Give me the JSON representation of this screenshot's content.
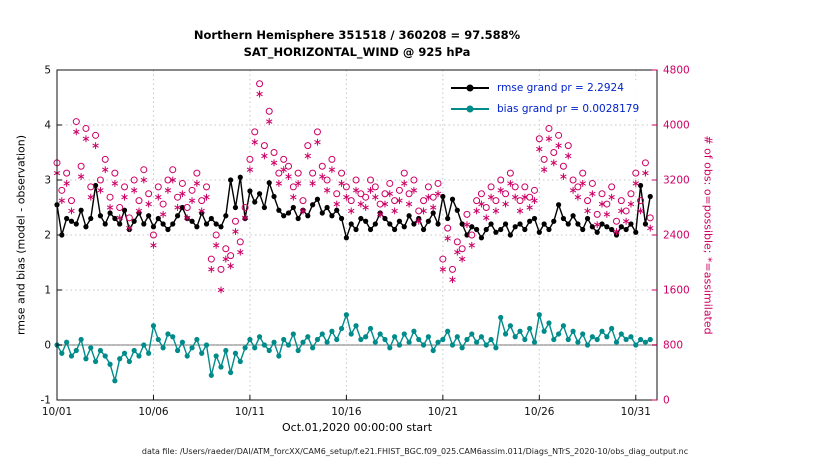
{
  "chart": {
    "title_line1": "Northern Hemisphere 351518 / 360208 = 97.588%",
    "title_line2": "SAT_HORIZONTAL_WIND @ 925 hPa",
    "xlabel": "Oct.01,2020 00:00:00 start",
    "ylabel_left": "rmse and bias (model - observation)",
    "ylabel_right": "# of obs: o=possible; *=assimilated",
    "footer": "data file: /Users/raeder/DAI/ATM_forcXX/CAM6_setup/f.e21.FHIST_BGC.f09_025.CAM6assim.011/Diags_NTrS_2020-10/obs_diag_output.nc",
    "colors": {
      "rmse": "#000000",
      "bias": "#008b8b",
      "obs": "#cc0066",
      "legend_text": "#0022cc",
      "axis": "#111111",
      "grid": "#c7c7c7",
      "zero_line": "#b8b8b8"
    },
    "legend": [
      {
        "label": "rmse grand pr = 2.2924",
        "color": "#000000"
      },
      {
        "label": "bias grand pr = 0.0028179",
        "color": "#008b8b"
      }
    ]
  },
  "chart_data": {
    "type": "line",
    "title": "Northern Hemisphere 351518 / 360208 = 97.588% | SAT_HORIZONTAL_WIND @ 925 hPa",
    "xlabel": "Oct.01,2020 00:00:00 start",
    "ylabel_left": "rmse and bias (model - observation)",
    "ylabel_right": "# of obs: o=possible; *=assimilated",
    "grid": true,
    "legend_position": "top-right-inside",
    "xlim": [
      1,
      32.1
    ],
    "x_ticks": {
      "values": [
        1,
        6,
        11,
        16,
        21,
        26,
        31
      ],
      "labels": [
        "10/01",
        "10/06",
        "10/11",
        "10/16",
        "10/21",
        "10/26",
        "10/31"
      ]
    },
    "y_left": {
      "lim": [
        -1,
        5
      ],
      "ticks": [
        -1,
        0,
        1,
        2,
        3,
        4,
        5
      ]
    },
    "y_right": {
      "lim": [
        0,
        4800
      ],
      "ticks": [
        0,
        800,
        1600,
        2400,
        3200,
        4000,
        4800
      ]
    },
    "x": [
      1,
      1.25,
      1.5,
      1.75,
      2,
      2.25,
      2.5,
      2.75,
      3,
      3.25,
      3.5,
      3.75,
      4,
      4.25,
      4.5,
      4.75,
      5,
      5.25,
      5.5,
      5.75,
      6,
      6.25,
      6.5,
      6.75,
      7,
      7.25,
      7.5,
      7.75,
      8,
      8.25,
      8.5,
      8.75,
      9,
      9.25,
      9.5,
      9.75,
      10,
      10.25,
      10.5,
      10.75,
      11,
      11.25,
      11.5,
      11.75,
      12,
      12.25,
      12.5,
      12.75,
      13,
      13.25,
      13.5,
      13.75,
      14,
      14.25,
      14.5,
      14.75,
      15,
      15.25,
      15.5,
      15.75,
      16,
      16.25,
      16.5,
      16.75,
      17,
      17.25,
      17.5,
      17.75,
      18,
      18.25,
      18.5,
      18.75,
      19,
      19.25,
      19.5,
      19.75,
      20,
      20.25,
      20.5,
      20.75,
      21,
      21.25,
      21.5,
      21.75,
      22,
      22.25,
      22.5,
      22.75,
      23,
      23.25,
      23.5,
      23.75,
      24,
      24.25,
      24.5,
      24.75,
      25,
      25.25,
      25.5,
      25.75,
      26,
      26.25,
      26.5,
      26.75,
      27,
      27.25,
      27.5,
      27.75,
      28,
      28.25,
      28.5,
      28.75,
      29,
      29.25,
      29.5,
      29.75,
      30,
      30.25,
      30.5,
      30.75,
      31,
      31.25,
      31.5,
      31.75
    ],
    "series": [
      {
        "name": "rmse",
        "axis": "left",
        "color": "#000000",
        "marker": "filled-circle",
        "line": true,
        "grand_pr": 2.2924,
        "values": [
          2.55,
          2.0,
          2.3,
          2.25,
          2.2,
          2.45,
          2.15,
          2.3,
          2.9,
          2.35,
          2.2,
          2.4,
          2.3,
          2.2,
          2.45,
          2.1,
          2.25,
          2.4,
          2.2,
          2.35,
          2.15,
          2.3,
          2.2,
          2.1,
          2.2,
          2.35,
          2.5,
          2.3,
          2.25,
          2.15,
          2.4,
          2.2,
          2.3,
          2.2,
          2.15,
          2.35,
          3.0,
          2.5,
          3.05,
          2.3,
          2.8,
          2.6,
          2.75,
          2.5,
          2.95,
          2.7,
          2.45,
          2.35,
          2.4,
          2.5,
          2.3,
          2.45,
          2.35,
          2.55,
          2.65,
          2.4,
          2.5,
          2.35,
          2.45,
          2.3,
          1.95,
          2.2,
          2.1,
          2.3,
          2.25,
          2.1,
          2.2,
          2.4,
          2.3,
          2.2,
          2.1,
          2.25,
          2.15,
          2.35,
          2.2,
          2.3,
          2.1,
          2.25,
          2.4,
          2.2,
          2.7,
          2.3,
          2.65,
          2.45,
          2.2,
          2.0,
          2.15,
          2.1,
          1.95,
          2.1,
          2.2,
          2.05,
          2.1,
          2.2,
          2.0,
          2.15,
          2.2,
          2.1,
          2.25,
          2.3,
          2.05,
          2.2,
          2.1,
          2.25,
          2.55,
          2.3,
          2.2,
          2.35,
          2.2,
          2.1,
          2.3,
          2.15,
          2.05,
          2.2,
          2.15,
          2.1,
          2.0,
          2.15,
          2.1,
          2.2,
          2.05,
          2.9,
          2.2,
          2.7
        ]
      },
      {
        "name": "bias",
        "axis": "left",
        "color": "#008b8b",
        "marker": "filled-circle",
        "line": true,
        "grand_pr": 0.0028179,
        "values": [
          0.0,
          -0.15,
          0.05,
          -0.2,
          -0.1,
          0.1,
          -0.25,
          -0.05,
          -0.3,
          -0.1,
          -0.2,
          -0.35,
          -0.65,
          -0.25,
          -0.15,
          -0.3,
          -0.1,
          -0.2,
          0.0,
          -0.15,
          0.35,
          0.1,
          -0.05,
          0.2,
          0.15,
          -0.1,
          0.05,
          -0.2,
          -0.05,
          0.1,
          -0.15,
          0.0,
          -0.55,
          -0.2,
          -0.4,
          -0.1,
          -0.5,
          -0.15,
          -0.3,
          -0.05,
          0.1,
          -0.05,
          0.15,
          0.0,
          -0.1,
          0.05,
          -0.2,
          0.1,
          0.0,
          0.2,
          -0.1,
          0.05,
          0.15,
          -0.05,
          0.1,
          0.2,
          0.05,
          0.25,
          0.1,
          0.3,
          0.55,
          0.2,
          0.35,
          0.1,
          0.15,
          0.3,
          0.05,
          0.2,
          0.1,
          -0.05,
          0.15,
          0.0,
          0.2,
          0.05,
          0.25,
          0.1,
          0.0,
          0.15,
          -0.1,
          0.05,
          0.1,
          0.25,
          0.0,
          0.15,
          -0.05,
          0.1,
          0.2,
          0.05,
          0.15,
          0.0,
          0.1,
          -0.05,
          0.5,
          0.2,
          0.35,
          0.15,
          0.25,
          0.1,
          0.3,
          0.05,
          0.55,
          0.25,
          0.4,
          0.1,
          0.2,
          0.35,
          0.1,
          0.25,
          0.05,
          0.2,
          0.0,
          0.15,
          0.1,
          0.25,
          0.15,
          0.3,
          0.05,
          0.2,
          0.1,
          0.15,
          0.0,
          0.1,
          0.05,
          0.1
        ]
      },
      {
        "name": "possible",
        "axis": "right",
        "color": "#cc0066",
        "marker": "open-circle",
        "line": false,
        "values": [
          3450,
          3050,
          3300,
          2900,
          4050,
          3400,
          3950,
          3100,
          3850,
          3200,
          3500,
          2950,
          3300,
          2800,
          3100,
          2650,
          3200,
          2900,
          3350,
          3000,
          2400,
          3100,
          2850,
          3200,
          3350,
          2950,
          3150,
          2800,
          3050,
          3300,
          2900,
          3100,
          2050,
          2400,
          1900,
          2200,
          2100,
          2600,
          2300,
          2800,
          3500,
          3900,
          4600,
          3700,
          4200,
          3600,
          3300,
          3500,
          3400,
          3100,
          3300,
          2900,
          3700,
          3300,
          3900,
          3400,
          3200,
          3500,
          3000,
          3300,
          3100,
          2900,
          3200,
          3000,
          2950,
          3200,
          3100,
          2850,
          3000,
          3150,
          2900,
          3050,
          3300,
          3000,
          3200,
          2750,
          2900,
          3100,
          2950,
          3150,
          2050,
          2500,
          1900,
          2300,
          2200,
          2700,
          2400,
          2900,
          3000,
          2800,
          3100,
          2900,
          3200,
          3000,
          3300,
          3100,
          2900,
          3100,
          2950,
          3050,
          3800,
          3500,
          3950,
          3600,
          3850,
          3400,
          3700,
          3200,
          3100,
          3300,
          2900,
          3150,
          2700,
          3000,
          2850,
          3100,
          2600,
          2900,
          2750,
          3000,
          3300,
          2900,
          3450,
          2650
        ]
      },
      {
        "name": "assimilated",
        "axis": "right",
        "color": "#cc0066",
        "marker": "asterisk",
        "line": false,
        "values": [
          3300,
          2900,
          3150,
          2750,
          3900,
          3250,
          3800,
          2950,
          3700,
          3050,
          3350,
          2800,
          3150,
          2650,
          2950,
          2500,
          3050,
          2750,
          3200,
          2850,
          2250,
          2950,
          2700,
          3050,
          3200,
          2800,
          3000,
          2650,
          2900,
          3150,
          2750,
          2950,
          1900,
          2250,
          1600,
          2050,
          1950,
          2450,
          2150,
          2650,
          3350,
          3750,
          4450,
          3550,
          4050,
          3450,
          3150,
          3350,
          3250,
          2950,
          3150,
          2750,
          3550,
          3150,
          3750,
          3250,
          3050,
          3350,
          2850,
          3150,
          2950,
          2750,
          3050,
          2850,
          2800,
          3050,
          2950,
          2700,
          2850,
          3000,
          2750,
          2900,
          3150,
          2850,
          3050,
          2600,
          2750,
          2950,
          2800,
          3000,
          1900,
          2350,
          1750,
          2150,
          2050,
          2550,
          2250,
          2750,
          2850,
          2650,
          2950,
          2750,
          3050,
          2850,
          3150,
          2950,
          2750,
          2950,
          2800,
          2900,
          3650,
          3350,
          3800,
          3450,
          3700,
          3250,
          3550,
          3050,
          2950,
          3150,
          2750,
          3000,
          2550,
          2850,
          2700,
          2950,
          2450,
          2750,
          2600,
          2850,
          3150,
          2750,
          3300,
          2500
        ]
      }
    ]
  }
}
